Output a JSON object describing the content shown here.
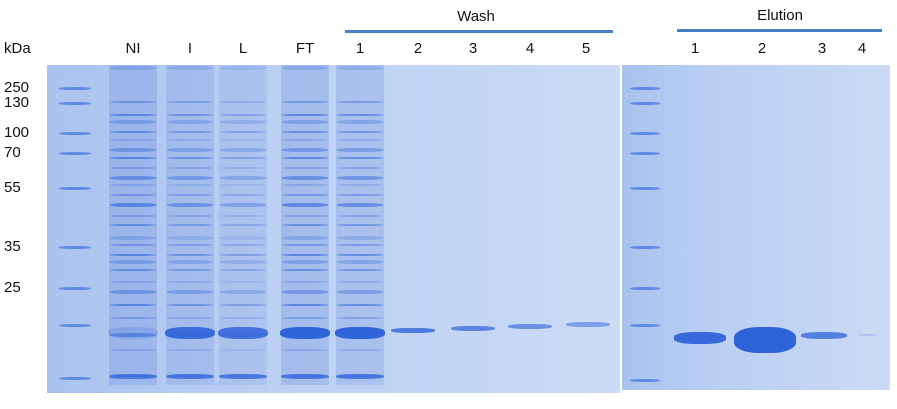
{
  "unit_label": "kDa",
  "markers": [
    "250",
    "130",
    "100",
    "70",
    "55",
    "35",
    "25"
  ],
  "group_labels": {
    "wash": "Wash",
    "elution": "Elution"
  },
  "left_lanes": [
    "NI",
    "I",
    "L",
    "FT",
    "1",
    "2",
    "3",
    "4",
    "5"
  ],
  "right_lanes": [
    "1",
    "2",
    "3",
    "4"
  ],
  "colors": {
    "gel": "#bcd0f3",
    "band": "#2f63d8",
    "bracket": "#4a7ec4"
  }
}
